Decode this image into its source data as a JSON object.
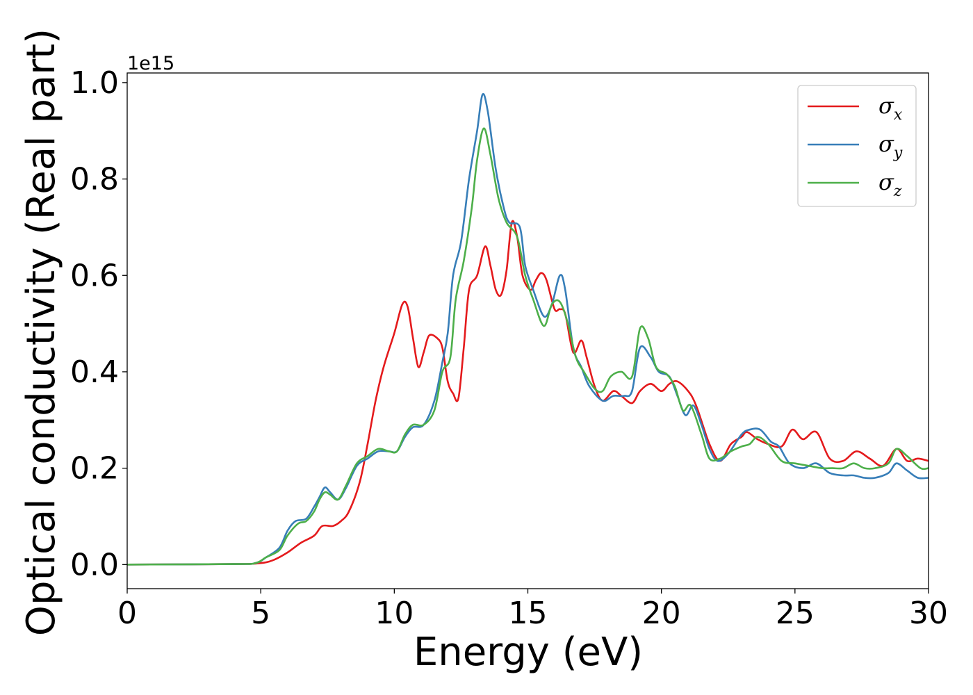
{
  "chart_data": {
    "type": "line",
    "xlabel": "Energy (eV)",
    "ylabel": "Optical conductivity (Real part)",
    "y_offset_label": "1e15",
    "xlim": [
      0,
      30
    ],
    "ylim": [
      -0.05,
      1.02
    ],
    "x_ticks": [
      0,
      5,
      10,
      15,
      20,
      25,
      30
    ],
    "x_tick_labels": [
      "0",
      "5",
      "10",
      "15",
      "20",
      "25",
      "30"
    ],
    "y_ticks": [
      0.0,
      0.2,
      0.4,
      0.6,
      0.8,
      1.0
    ],
    "y_tick_labels": [
      "0.0",
      "0.2",
      "0.4",
      "0.6",
      "0.8",
      "1.0"
    ],
    "grid": false,
    "legend_position": "top-right",
    "series": [
      {
        "name": "σx",
        "symbol": "σ",
        "subscript": "x",
        "color": "#e41a1c",
        "points": [
          [
            0,
            0
          ],
          [
            4,
            0.001
          ],
          [
            5,
            0.003
          ],
          [
            5.5,
            0.01
          ],
          [
            6,
            0.025
          ],
          [
            6.5,
            0.045
          ],
          [
            7,
            0.06
          ],
          [
            7.3,
            0.08
          ],
          [
            7.7,
            0.08
          ],
          [
            8,
            0.09
          ],
          [
            8.3,
            0.11
          ],
          [
            8.7,
            0.17
          ],
          [
            9,
            0.25
          ],
          [
            9.3,
            0.34
          ],
          [
            9.6,
            0.41
          ],
          [
            10,
            0.48
          ],
          [
            10.3,
            0.54
          ],
          [
            10.5,
            0.535
          ],
          [
            10.7,
            0.47
          ],
          [
            10.9,
            0.41
          ],
          [
            11.1,
            0.44
          ],
          [
            11.3,
            0.475
          ],
          [
            11.6,
            0.47
          ],
          [
            11.8,
            0.45
          ],
          [
            12,
            0.38
          ],
          [
            12.2,
            0.355
          ],
          [
            12.4,
            0.345
          ],
          [
            12.6,
            0.45
          ],
          [
            12.8,
            0.57
          ],
          [
            13.1,
            0.6
          ],
          [
            13.4,
            0.66
          ],
          [
            13.6,
            0.62
          ],
          [
            13.8,
            0.57
          ],
          [
            14,
            0.56
          ],
          [
            14.2,
            0.61
          ],
          [
            14.4,
            0.71
          ],
          [
            14.6,
            0.68
          ],
          [
            14.8,
            0.6
          ],
          [
            15.1,
            0.57
          ],
          [
            15.3,
            0.59
          ],
          [
            15.5,
            0.605
          ],
          [
            15.7,
            0.59
          ],
          [
            16,
            0.53
          ],
          [
            16.2,
            0.53
          ],
          [
            16.4,
            0.52
          ],
          [
            16.7,
            0.44
          ],
          [
            17,
            0.465
          ],
          [
            17.2,
            0.43
          ],
          [
            17.5,
            0.37
          ],
          [
            17.8,
            0.34
          ],
          [
            18.2,
            0.36
          ],
          [
            18.5,
            0.35
          ],
          [
            18.9,
            0.335
          ],
          [
            19.2,
            0.36
          ],
          [
            19.6,
            0.375
          ],
          [
            20,
            0.36
          ],
          [
            20.3,
            0.375
          ],
          [
            20.6,
            0.38
          ],
          [
            21,
            0.36
          ],
          [
            21.3,
            0.33
          ],
          [
            21.8,
            0.25
          ],
          [
            22.2,
            0.215
          ],
          [
            22.6,
            0.25
          ],
          [
            23,
            0.265
          ],
          [
            23.2,
            0.275
          ],
          [
            23.6,
            0.26
          ],
          [
            24,
            0.25
          ],
          [
            24.5,
            0.245
          ],
          [
            24.9,
            0.28
          ],
          [
            25.3,
            0.26
          ],
          [
            25.8,
            0.275
          ],
          [
            26.3,
            0.22
          ],
          [
            26.8,
            0.215
          ],
          [
            27.3,
            0.235
          ],
          [
            27.8,
            0.22
          ],
          [
            28.3,
            0.205
          ],
          [
            28.8,
            0.24
          ],
          [
            29.2,
            0.215
          ],
          [
            29.6,
            0.22
          ],
          [
            30,
            0.215
          ]
        ]
      },
      {
        "name": "σy",
        "symbol": "σ",
        "subscript": "y",
        "color": "#377eb8",
        "points": [
          [
            0,
            0
          ],
          [
            4,
            0.001
          ],
          [
            4.8,
            0.003
          ],
          [
            5.2,
            0.015
          ],
          [
            5.7,
            0.035
          ],
          [
            6,
            0.07
          ],
          [
            6.3,
            0.09
          ],
          [
            6.7,
            0.095
          ],
          [
            7,
            0.12
          ],
          [
            7.2,
            0.14
          ],
          [
            7.4,
            0.16
          ],
          [
            7.6,
            0.15
          ],
          [
            7.9,
            0.135
          ],
          [
            8.2,
            0.16
          ],
          [
            8.6,
            0.205
          ],
          [
            9,
            0.22
          ],
          [
            9.4,
            0.235
          ],
          [
            9.8,
            0.235
          ],
          [
            10.1,
            0.235
          ],
          [
            10.4,
            0.265
          ],
          [
            10.7,
            0.285
          ],
          [
            11.1,
            0.29
          ],
          [
            11.5,
            0.34
          ],
          [
            11.8,
            0.42
          ],
          [
            12,
            0.48
          ],
          [
            12.2,
            0.6
          ],
          [
            12.5,
            0.67
          ],
          [
            12.8,
            0.8
          ],
          [
            13.1,
            0.9
          ],
          [
            13.3,
            0.975
          ],
          [
            13.5,
            0.94
          ],
          [
            13.8,
            0.82
          ],
          [
            14.1,
            0.74
          ],
          [
            14.3,
            0.71
          ],
          [
            14.7,
            0.7
          ],
          [
            14.9,
            0.62
          ],
          [
            15.2,
            0.57
          ],
          [
            15.6,
            0.515
          ],
          [
            15.9,
            0.54
          ],
          [
            16.2,
            0.6
          ],
          [
            16.4,
            0.57
          ],
          [
            16.7,
            0.45
          ],
          [
            17,
            0.41
          ],
          [
            17.3,
            0.37
          ],
          [
            17.8,
            0.34
          ],
          [
            18.2,
            0.35
          ],
          [
            18.6,
            0.35
          ],
          [
            18.9,
            0.36
          ],
          [
            19.2,
            0.45
          ],
          [
            19.6,
            0.43
          ],
          [
            19.9,
            0.4
          ],
          [
            20.3,
            0.39
          ],
          [
            20.6,
            0.35
          ],
          [
            20.9,
            0.31
          ],
          [
            21.2,
            0.33
          ],
          [
            21.5,
            0.29
          ],
          [
            21.8,
            0.24
          ],
          [
            22.1,
            0.215
          ],
          [
            22.5,
            0.23
          ],
          [
            23,
            0.27
          ],
          [
            23.3,
            0.28
          ],
          [
            23.7,
            0.28
          ],
          [
            24.1,
            0.255
          ],
          [
            24.4,
            0.245
          ],
          [
            24.8,
            0.21
          ],
          [
            25.3,
            0.2
          ],
          [
            25.8,
            0.21
          ],
          [
            26.3,
            0.19
          ],
          [
            26.8,
            0.185
          ],
          [
            27.2,
            0.185
          ],
          [
            27.6,
            0.18
          ],
          [
            28,
            0.18
          ],
          [
            28.5,
            0.19
          ],
          [
            28.8,
            0.21
          ],
          [
            29.2,
            0.195
          ],
          [
            29.6,
            0.18
          ],
          [
            30,
            0.18
          ]
        ]
      },
      {
        "name": "σz",
        "symbol": "σ",
        "subscript": "z",
        "color": "#4daf4a",
        "points": [
          [
            0,
            0
          ],
          [
            4,
            0.001
          ],
          [
            4.8,
            0.003
          ],
          [
            5.2,
            0.015
          ],
          [
            5.7,
            0.03
          ],
          [
            6,
            0.06
          ],
          [
            6.4,
            0.085
          ],
          [
            6.7,
            0.09
          ],
          [
            7,
            0.11
          ],
          [
            7.2,
            0.135
          ],
          [
            7.4,
            0.15
          ],
          [
            7.6,
            0.145
          ],
          [
            7.9,
            0.135
          ],
          [
            8.2,
            0.165
          ],
          [
            8.6,
            0.21
          ],
          [
            9,
            0.225
          ],
          [
            9.4,
            0.24
          ],
          [
            9.8,
            0.235
          ],
          [
            10.1,
            0.235
          ],
          [
            10.4,
            0.27
          ],
          [
            10.7,
            0.29
          ],
          [
            11.1,
            0.29
          ],
          [
            11.5,
            0.32
          ],
          [
            11.8,
            0.4
          ],
          [
            12.1,
            0.43
          ],
          [
            12.3,
            0.55
          ],
          [
            12.6,
            0.63
          ],
          [
            12.9,
            0.74
          ],
          [
            13.1,
            0.84
          ],
          [
            13.35,
            0.905
          ],
          [
            13.6,
            0.85
          ],
          [
            13.9,
            0.76
          ],
          [
            14.2,
            0.71
          ],
          [
            14.6,
            0.68
          ],
          [
            14.9,
            0.6
          ],
          [
            15.2,
            0.55
          ],
          [
            15.6,
            0.495
          ],
          [
            15.9,
            0.54
          ],
          [
            16.2,
            0.545
          ],
          [
            16.5,
            0.5
          ],
          [
            16.8,
            0.43
          ],
          [
            17.1,
            0.4
          ],
          [
            17.5,
            0.365
          ],
          [
            17.8,
            0.36
          ],
          [
            18.1,
            0.39
          ],
          [
            18.5,
            0.4
          ],
          [
            18.9,
            0.39
          ],
          [
            19.2,
            0.49
          ],
          [
            19.5,
            0.47
          ],
          [
            19.8,
            0.41
          ],
          [
            20.2,
            0.395
          ],
          [
            20.5,
            0.37
          ],
          [
            20.8,
            0.32
          ],
          [
            21.1,
            0.33
          ],
          [
            21.5,
            0.27
          ],
          [
            21.8,
            0.22
          ],
          [
            22.2,
            0.22
          ],
          [
            22.6,
            0.235
          ],
          [
            23,
            0.245
          ],
          [
            23.3,
            0.25
          ],
          [
            23.6,
            0.265
          ],
          [
            24,
            0.25
          ],
          [
            24.5,
            0.215
          ],
          [
            25,
            0.21
          ],
          [
            25.5,
            0.205
          ],
          [
            26,
            0.2
          ],
          [
            26.4,
            0.2
          ],
          [
            26.8,
            0.2
          ],
          [
            27.2,
            0.21
          ],
          [
            27.6,
            0.2
          ],
          [
            28,
            0.2
          ],
          [
            28.5,
            0.21
          ],
          [
            28.8,
            0.24
          ],
          [
            29.2,
            0.225
          ],
          [
            29.7,
            0.2
          ],
          [
            30,
            0.2
          ]
        ]
      }
    ]
  }
}
